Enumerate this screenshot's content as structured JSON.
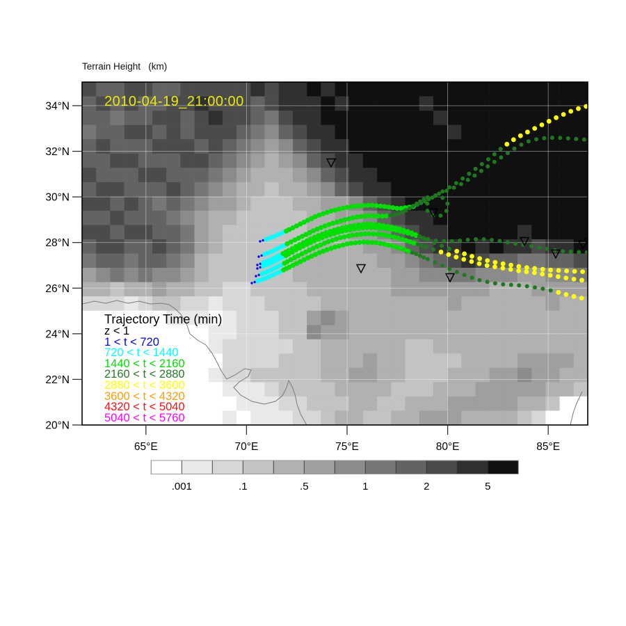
{
  "title": "Terrain Height   (km)",
  "timestamp": "2010-04-19_21:00:00",
  "legend": {
    "title": "Trajectory Time (min)",
    "entries": [
      {
        "label": "z < 1",
        "color": "#000000"
      },
      {
        "label": "1 < t < 720",
        "color": "#0000ff"
      },
      {
        "label": "720 < t < 1440",
        "color": "#00ffff"
      },
      {
        "label": "1440 < t < 2160",
        "color": "#00dd00"
      },
      {
        "label": "2160 < t < 2880",
        "color": "#257a25"
      },
      {
        "label": "2880 < t < 3600",
        "color": "#ffff00"
      },
      {
        "label": "3600 < t < 4320",
        "color": "#ff9d00"
      },
      {
        "label": "4320 < t < 5040",
        "color": "#ff0f0f"
      },
      {
        "label": "5040 < t < 5760",
        "color": "#ff00ff"
      }
    ]
  },
  "axes": {
    "lat_ticks": [
      {
        "label": "34°N",
        "lat": 34
      },
      {
        "label": "32°N",
        "lat": 32
      },
      {
        "label": "30°N",
        "lat": 30
      },
      {
        "label": "28°N",
        "lat": 28
      },
      {
        "label": "26°N",
        "lat": 26
      },
      {
        "label": "24°N",
        "lat": 24
      },
      {
        "label": "22°N",
        "lat": 22
      },
      {
        "label": "20°N",
        "lat": 20
      }
    ],
    "lon_ticks": [
      {
        "label": "65°E",
        "lon": 65
      },
      {
        "label": "70°E",
        "lon": 70
      },
      {
        "label": "75°E",
        "lon": 75
      },
      {
        "label": "80°E",
        "lon": 80
      },
      {
        "label": "85°E",
        "lon": 85
      }
    ]
  },
  "colorbar": {
    "segment_colors": [
      "#ffffff",
      "#e9e9e9",
      "#d7d7d7",
      "#c3c3c3",
      "#b1b1b1",
      "#9f9f9f",
      "#8b8b8b",
      "#777777",
      "#636363",
      "#4b4b4b",
      "#303030",
      "#101010"
    ],
    "labels": [
      {
        "text": ".001",
        "boundary_index": 1
      },
      {
        "text": ".1",
        "boundary_index": 3
      },
      {
        "text": ".5",
        "boundary_index": 5
      },
      {
        "text": "1",
        "boundary_index": 7
      },
      {
        "text": "2",
        "boundary_index": 9
      },
      {
        "text": "5",
        "boundary_index": 11
      }
    ]
  },
  "chart_data": {
    "type": "scatter",
    "title": "Terrain Height (km)",
    "subtitle": "2010-04-19_21:00:00",
    "map_extent": {
      "lon_min": 61.8,
      "lon_max": 87.0,
      "lat_min": 19.9,
      "lat_max": 35.0
    },
    "grid_lines": {
      "lats": [
        20,
        22,
        24,
        26,
        28,
        30,
        32,
        34
      ],
      "lons": [
        65,
        70,
        75,
        80,
        85
      ]
    },
    "colorbar_values": [
      0.001,
      0.1,
      0.5,
      1,
      2,
      5
    ],
    "dot_colors": {
      "blue": "#0008ff",
      "cyan": "#00ffff",
      "green": "#00e000",
      "dkgreen": "#1f7a1f",
      "yellow": "#ffff00"
    },
    "terrain_grid": {
      "cols": 36,
      "rows": 24,
      "palette": [
        "#ffffff",
        "#e9e9e9",
        "#d7d7d7",
        "#c3c3c3",
        "#b1b1b1",
        "#9f9f9f",
        "#8b8b8b",
        "#777777",
        "#636363",
        "#4b4b4b",
        "#303030",
        "#101010"
      ],
      "rows_data": [
        "988998899999A9AABABBBBBBBBBBBBBBBBBB",
        "89898899A99989AAABABBBBBABBBBBBBBBBB",
        "887889989A99879AABBBBBBBBABBBBBBBBBB",
        "7889989899987689AABBBBBBBBABBBBBBBBB",
        "89888999898765689AABBBBBBBBBBBBBBBBB",
        "889988899876545689AABBBBBBBBBBBBBBBB",
        "9888998887654445689AABBBBBBBBBBBBBBB",
        "89988898765443445689AABBBBBBBBBBBBBB",
        "9989878765543334455689ABBBBBBBBBBBBB",
        "88988876544333334455689AABBBBBBBBBBB",
        "998998875433333344455689AABBBBBABBBB",
        "8998898754333333444455689AABABAA9AAB",
        "788788764333333444444556789A98877889",
        "567676654333333444444455667766655667",
        "443445443322333344444455555554445555",
        "222123322122233334444444445444444544",
        "000000111012223356544444444444444444",
        "000000000112223365544444444444444444",
        "000000000122222334444443344444444444",
        "000000000022223334445443333444455554",
        "000000000122333334455443334445565544",
        "000000000011123333444433344455555443",
        "000000000001112233344334445555544300",
        "000000000010111223443344555444432000"
      ]
    },
    "coastline": [
      [
        [
          118,
          437
        ],
        [
          136,
          433
        ],
        [
          152,
          436
        ],
        [
          168,
          432
        ],
        [
          184,
          436
        ],
        [
          200,
          433
        ],
        [
          216,
          437
        ],
        [
          232,
          436
        ],
        [
          243,
          438
        ],
        [
          252,
          444
        ],
        [
          260,
          452
        ],
        [
          268,
          465
        ],
        [
          273,
          480
        ],
        [
          284,
          489
        ],
        [
          296,
          496
        ],
        [
          305,
          508
        ],
        [
          312,
          521
        ],
        [
          318,
          533
        ],
        [
          326,
          545
        ],
        [
          338,
          539
        ],
        [
          352,
          530
        ],
        [
          361,
          532
        ],
        [
          357,
          541
        ],
        [
          344,
          549
        ],
        [
          336,
          557
        ],
        [
          346,
          568
        ],
        [
          362,
          577
        ],
        [
          380,
          581
        ],
        [
          396,
          577
        ],
        [
          406,
          569
        ],
        [
          412,
          557
        ],
        [
          415,
          547
        ],
        [
          420,
          556
        ],
        [
          424,
          567
        ],
        [
          427,
          581
        ],
        [
          432,
          595
        ],
        [
          438,
          606
        ],
        [
          441,
          611
        ]
      ],
      [
        [
          837,
          563
        ],
        [
          829,
          580
        ],
        [
          824,
          594
        ],
        [
          820,
          611
        ]
      ]
    ],
    "markers": [
      [
        476,
        238
      ],
      [
        519,
        390
      ],
      [
        623,
        310
      ],
      [
        647,
        403
      ],
      [
        754,
        351
      ],
      [
        799,
        369
      ],
      [
        838,
        356
      ],
      [
        846,
        352
      ]
    ],
    "trajectories": [
      {
        "name": "traj-1",
        "lead_blue_dots": 2,
        "points": [
          [
            374,
            347
          ],
          [
            394,
            340
          ],
          [
            414,
            331
          ],
          [
            434,
            321
          ],
          [
            454,
            311
          ],
          [
            474,
            304
          ],
          [
            494,
            299
          ],
          [
            514,
            296
          ],
          [
            534,
            295
          ],
          [
            554,
            297
          ],
          [
            574,
            300
          ],
          [
            594,
            297
          ],
          [
            610,
            290
          ],
          [
            626,
            281
          ],
          [
            642,
            272
          ],
          [
            658,
            262
          ],
          [
            674,
            250
          ],
          [
            690,
            238
          ],
          [
            706,
            226
          ],
          [
            722,
            212
          ],
          [
            738,
            201
          ],
          [
            754,
            192
          ],
          [
            770,
            184
          ],
          [
            786,
            176
          ],
          [
            802,
            168
          ],
          [
            818,
            161
          ],
          [
            832,
            156
          ],
          [
            846,
            152
          ]
        ],
        "color_stops": [
          [
            410,
            "cyan"
          ],
          [
            596,
            "green"
          ],
          [
            722,
            "dkgreen"
          ],
          [
            9999,
            "yellow"
          ]
        ]
      },
      {
        "name": "traj-2",
        "lead_blue_dots": 2,
        "points": [
          [
            372,
            369
          ],
          [
            392,
            361
          ],
          [
            412,
            351
          ],
          [
            432,
            341
          ],
          [
            452,
            331
          ],
          [
            472,
            323
          ],
          [
            492,
            317
          ],
          [
            512,
            312
          ],
          [
            532,
            310
          ],
          [
            552,
            311
          ],
          [
            572,
            308
          ],
          [
            588,
            300
          ],
          [
            602,
            291
          ],
          [
            616,
            283
          ],
          [
            630,
            281
          ],
          [
            641,
            287
          ],
          [
            645,
            297
          ],
          [
            640,
            307
          ],
          [
            629,
            312
          ],
          [
            617,
            308
          ],
          [
            612,
            297
          ],
          [
            618,
            286
          ],
          [
            632,
            278
          ],
          [
            648,
            272
          ],
          [
            664,
            264
          ],
          [
            680,
            254
          ],
          [
            696,
            243
          ],
          [
            712,
            232
          ],
          [
            727,
            222
          ],
          [
            742,
            212
          ],
          [
            757,
            204
          ],
          [
            772,
            200
          ],
          [
            787,
            198
          ],
          [
            802,
            198
          ],
          [
            817,
            199
          ],
          [
            832,
            200
          ],
          [
            846,
            201
          ]
        ],
        "color_stops": [
          [
            410,
            "cyan"
          ],
          [
            560,
            "green"
          ],
          [
            9999,
            "dkgreen"
          ]
        ]
      },
      {
        "name": "traj-3",
        "lead_blue_dots": 2,
        "points": [
          [
            370,
            386
          ],
          [
            390,
            378
          ],
          [
            410,
            368
          ],
          [
            430,
            357
          ],
          [
            450,
            347
          ],
          [
            470,
            339
          ],
          [
            490,
            333
          ],
          [
            510,
            329
          ],
          [
            530,
            327
          ],
          [
            550,
            328
          ],
          [
            570,
            331
          ],
          [
            590,
            336
          ],
          [
            608,
            342
          ],
          [
            626,
            346
          ],
          [
            644,
            347
          ],
          [
            662,
            346
          ],
          [
            680,
            344
          ],
          [
            698,
            344
          ],
          [
            716,
            346
          ],
          [
            734,
            349
          ],
          [
            752,
            352
          ],
          [
            770,
            355
          ],
          [
            788,
            358
          ],
          [
            806,
            361
          ],
          [
            824,
            362
          ],
          [
            846,
            363
          ]
        ],
        "color_stops": [
          [
            408,
            "cyan"
          ],
          [
            600,
            "green"
          ],
          [
            9999,
            "dkgreen"
          ]
        ]
      },
      {
        "name": "traj-4",
        "lead_blue_dots": 2,
        "points": [
          [
            368,
            397
          ],
          [
            388,
            389
          ],
          [
            408,
            379
          ],
          [
            428,
            368
          ],
          [
            448,
            358
          ],
          [
            468,
            349
          ],
          [
            488,
            342
          ],
          [
            508,
            338
          ],
          [
            528,
            336
          ],
          [
            548,
            337
          ],
          [
            568,
            341
          ],
          [
            588,
            347
          ],
          [
            606,
            353
          ],
          [
            624,
            359
          ],
          [
            642,
            365
          ],
          [
            660,
            371
          ],
          [
            678,
            376
          ],
          [
            696,
            381
          ],
          [
            714,
            384
          ],
          [
            732,
            387
          ],
          [
            750,
            390
          ],
          [
            768,
            392
          ],
          [
            786,
            395
          ],
          [
            804,
            398
          ],
          [
            822,
            401
          ],
          [
            846,
            404
          ]
        ],
        "color_stops": [
          [
            406,
            "cyan"
          ],
          [
            598,
            "green"
          ],
          [
            634,
            "dkgreen"
          ],
          [
            9999,
            "yellow"
          ]
        ]
      },
      {
        "name": "traj-5",
        "lead_blue_dots": 2,
        "points": [
          [
            362,
            407
          ],
          [
            382,
            400
          ],
          [
            402,
            391
          ],
          [
            422,
            381
          ],
          [
            442,
            371
          ],
          [
            462,
            362
          ],
          [
            482,
            355
          ],
          [
            502,
            350
          ],
          [
            522,
            348
          ],
          [
            542,
            349
          ],
          [
            562,
            353
          ],
          [
            582,
            359
          ],
          [
            600,
            366
          ],
          [
            618,
            374
          ],
          [
            636,
            382
          ],
          [
            654,
            390
          ],
          [
            672,
            397
          ],
          [
            690,
            403
          ],
          [
            708,
            407
          ],
          [
            726,
            409
          ],
          [
            744,
            410
          ],
          [
            762,
            412
          ],
          [
            780,
            415
          ],
          [
            798,
            419
          ],
          [
            816,
            424
          ],
          [
            832,
            428
          ],
          [
            846,
            430
          ]
        ],
        "color_stops": [
          [
            404,
            "cyan"
          ],
          [
            590,
            "green"
          ],
          [
            792,
            "dkgreen"
          ],
          [
            9999,
            "yellow"
          ]
        ]
      },
      {
        "name": "traj-6",
        "lead_blue_dots": 2,
        "points": [
          [
            370,
            381
          ],
          [
            390,
            373
          ],
          [
            410,
            363
          ],
          [
            430,
            352
          ],
          [
            450,
            342
          ],
          [
            470,
            334
          ],
          [
            490,
            328
          ],
          [
            510,
            324
          ],
          [
            530,
            322
          ],
          [
            550,
            324
          ],
          [
            570,
            328
          ],
          [
            590,
            334
          ],
          [
            608,
            342
          ],
          [
            626,
            350
          ],
          [
            644,
            357
          ],
          [
            662,
            363
          ],
          [
            680,
            369
          ],
          [
            698,
            374
          ],
          [
            716,
            378
          ],
          [
            734,
            381
          ],
          [
            752,
            384
          ],
          [
            770,
            386
          ],
          [
            788,
            388
          ],
          [
            806,
            389
          ],
          [
            824,
            390
          ],
          [
            846,
            391
          ]
        ],
        "color_stops": [
          [
            406,
            "cyan"
          ],
          [
            602,
            "green"
          ],
          [
            648,
            "dkgreen"
          ],
          [
            9999,
            "yellow"
          ]
        ]
      }
    ]
  }
}
